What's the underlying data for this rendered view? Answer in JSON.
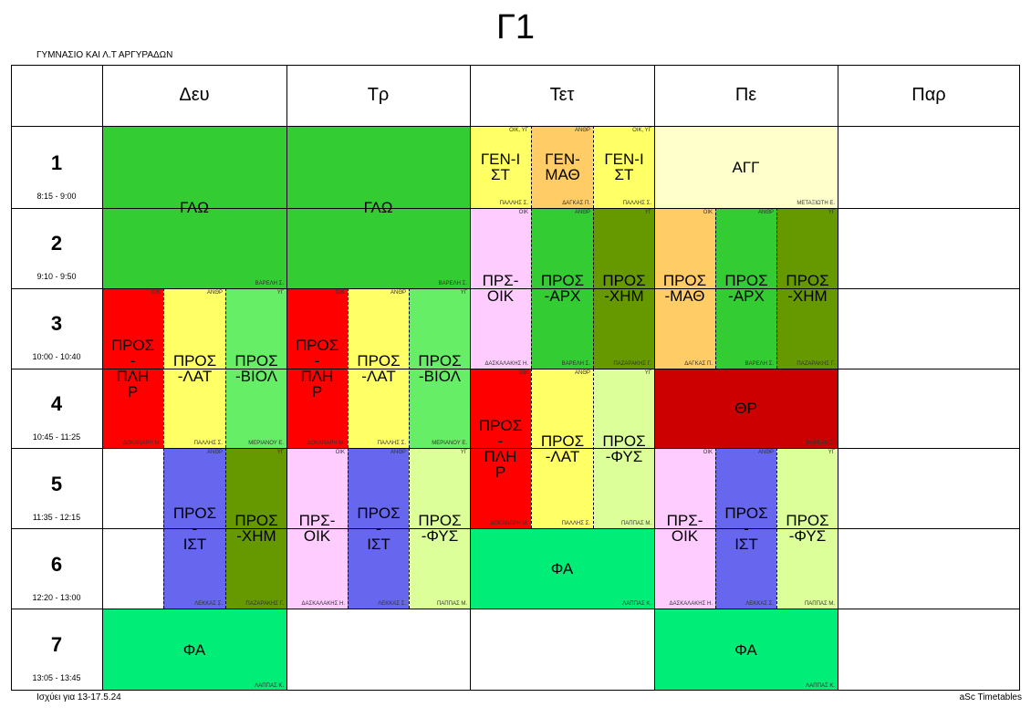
{
  "title": "Γ1",
  "school": "ΓΥΜΝΑΣΙΟ ΚΑΙ Λ.Τ ΑΡΓΥΡΑΔΩΝ",
  "footer_left": "Ισχύει για 13-17.5.24",
  "footer_right": "aSc Timetables",
  "days": [
    "Δευ",
    "Τρ",
    "Τετ",
    "Πε",
    "Παρ"
  ],
  "periods": [
    {
      "num": "1",
      "time": "8:15 - 9:00"
    },
    {
      "num": "2",
      "time": "9:10 - 9:50"
    },
    {
      "num": "3",
      "time": "10:00 - 10:40"
    },
    {
      "num": "4",
      "time": "10:45 - 11:25"
    },
    {
      "num": "5",
      "time": "11:35 - 12:15"
    },
    {
      "num": "6",
      "time": "12:20 - 13:00"
    },
    {
      "num": "7",
      "time": "13:05 - 13:45"
    }
  ],
  "colors": {
    "glo": "#33cc33",
    "red": "#ff0000",
    "yellow": "#ffff66",
    "lightgreen": "#66ee66",
    "pink": "#ffccff",
    "blue": "#6666ee",
    "olive": "#669900",
    "lime": "#ddff99",
    "orange": "#ffcc66",
    "cream": "#ffffcc",
    "darkred": "#cc0000",
    "teal": "#00ee77"
  },
  "lessons": [
    {
      "subject": "ΓΛΩ",
      "group": "",
      "teacher": "ΒΑΡΕΛΗ Σ."
    },
    {
      "subject": "ΓΛΩ",
      "group": "",
      "teacher": "ΒΑΡΕΛΗ Σ."
    },
    {
      "subject": "ΓΕΝ-Ι ΣΤ",
      "group": "ΟΙΚ, ΥΓ",
      "teacher": "ΠΑΛΛΗΣ Σ."
    },
    {
      "subject": "ΓΕΝ- ΜΑΘ",
      "group": "ΑΝΘΡ",
      "teacher": "ΔΑΓΚΑΣ Π."
    },
    {
      "subject": "ΓΕΝ-Ι ΣΤ",
      "group": "ΟΙΚ, ΥΓ",
      "teacher": "ΠΑΛΛΗΣ Σ."
    },
    {
      "subject": "ΑΓΓ",
      "group": "",
      "teacher": "ΜΕΤΑΞΙΩΤΗ Ε."
    },
    {
      "subject": "ΠΡΣ- ΟΙΚ",
      "group": "ΟΙΚ",
      "teacher": "ΔΑΣΚΑΛΑΚΗΣ Η."
    },
    {
      "subject": "ΠΡΟΣ -ΑΡΧ",
      "group": "ΑΝΘΡ",
      "teacher": "ΒΑΡΕΛΗ Σ."
    },
    {
      "subject": "ΠΡΟΣ -ΧΗΜ",
      "group": "ΥΓ",
      "teacher": "ΠΑΖΑΡΑΚΗΣ Γ."
    },
    {
      "subject": "ΠΡΟΣ -ΜΑΘ",
      "group": "ΟΙΚ",
      "teacher": "ΔΑΓΚΑΣ Π."
    },
    {
      "subject": "ΠΡΟΣ -ΑΡΧ",
      "group": "ΑΝΘΡ",
      "teacher": "ΒΑΡΕΛΗ Σ."
    },
    {
      "subject": "ΠΡΟΣ -ΧΗΜ",
      "group": "ΥΓ",
      "teacher": "ΠΑΖΑΡΑΚΗΣ Γ."
    },
    {
      "subject": "ΠΡΟΣ - ΠΛΗ Ρ",
      "group": "ΟΙΚ",
      "teacher": "ΔΟΚΑΝΑΡΗ Μ."
    },
    {
      "subject": "ΠΡΟΣ -ΛΑΤ",
      "group": "ΑΝΘΡ",
      "teacher": "ΠΑΛΛΗΣ Σ."
    },
    {
      "subject": "ΠΡΟΣ -ΒΙΟΛ",
      "group": "ΥΓ",
      "teacher": "ΜΕΡΙΑΝΟΥ Ε."
    },
    {
      "subject": "ΠΡΟΣ - ΠΛΗ Ρ",
      "group": "ΟΙΚ",
      "teacher": "ΔΟΚΑΝΑΡΗ Μ."
    },
    {
      "subject": "ΠΡΟΣ -ΛΑΤ",
      "group": "ΑΝΘΡ",
      "teacher": "ΠΑΛΛΗΣ Σ."
    },
    {
      "subject": "ΠΡΟΣ -ΒΙΟΛ",
      "group": "ΥΓ",
      "teacher": "ΜΕΡΙΑΝΟΥ Ε."
    },
    {
      "subject": "ΠΡΟΣ - ΠΛΗ Ρ",
      "group": "ΟΙΚ",
      "teacher": "ΔΟΚΑΝΑΡΗ Μ."
    },
    {
      "subject": "ΠΡΟΣ -ΛΑΤ",
      "group": "ΑΝΘΡ",
      "teacher": "ΠΑΛΛΗΣ Σ."
    },
    {
      "subject": "ΠΡΟΣ -ΦΥΣ",
      "group": "ΥΓ",
      "teacher": "ΠΑΠΠΑΣ Μ."
    },
    {
      "subject": "ΘΡ",
      "group": "",
      "teacher": "ΒΑΡΕΛΗ Σ."
    },
    {
      "subject": "ΠΡΟΣ - ΙΣΤ",
      "group": "ΑΝΘΡ",
      "teacher": "ΛΕΚΚΑΣ Σ."
    },
    {
      "subject": "ΠΡΟΣ -ΧΗΜ",
      "group": "ΥΓ",
      "teacher": "ΠΑΖΑΡΑΚΗΣ Γ."
    },
    {
      "subject": "ΠΡΣ- ΟΙΚ",
      "group": "ΟΙΚ",
      "teacher": "ΔΑΣΚΑΛΑΚΗΣ Η."
    },
    {
      "subject": "ΠΡΟΣ - ΙΣΤ",
      "group": "ΑΝΘΡ",
      "teacher": "ΛΕΚΚΑΣ Σ."
    },
    {
      "subject": "ΠΡΟΣ -ΦΥΣ",
      "group": "ΥΓ",
      "teacher": "ΠΑΠΠΑΣ Μ."
    },
    {
      "subject": "ΦΑ",
      "group": "",
      "teacher": "ΛΑΠΠΑΣ Κ."
    },
    {
      "subject": "ΠΡΣ- ΟΙΚ",
      "group": "ΟΙΚ",
      "teacher": "ΔΑΣΚΑΛΑΚΗΣ Η."
    },
    {
      "subject": "ΠΡΟΣ - ΙΣΤ",
      "group": "ΑΝΘΡ",
      "teacher": "ΛΕΚΚΑΣ Σ."
    },
    {
      "subject": "ΠΡΟΣ -ΦΥΣ",
      "group": "ΥΓ",
      "teacher": "ΠΑΠΠΑΣ Μ."
    },
    {
      "subject": "ΦΑ",
      "group": "",
      "teacher": "ΛΑΠΠΑΣ Κ."
    },
    {
      "subject": "ΦΑ",
      "group": "",
      "teacher": "ΛΑΠΠΑΣ Κ."
    }
  ]
}
